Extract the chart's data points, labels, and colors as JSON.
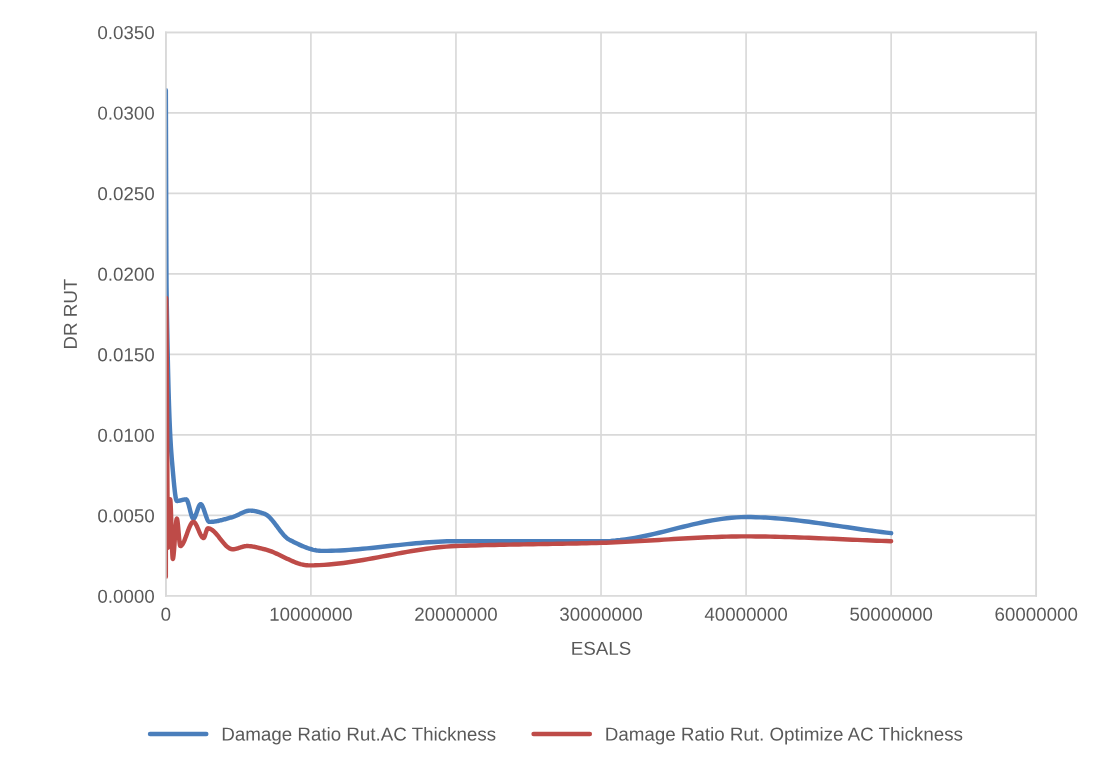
{
  "chart_data": {
    "type": "line",
    "xlabel": "ESALS",
    "ylabel": "DR RUT",
    "series": [
      {
        "name": "Damage Ratio Rut.AC Thickness",
        "color": "#4a7ebb",
        "x": [
          0,
          50000,
          480000,
          760000,
          1400000,
          1900000,
          2400000,
          3000000,
          4600000,
          5800000,
          6800000,
          8500000,
          10800000,
          20000000,
          30000000,
          40000000,
          50000000
        ],
        "values": [
          0.0314,
          0.019,
          0.0078,
          0.0059,
          0.006,
          0.0048,
          0.0057,
          0.0046,
          0.0049,
          0.0053,
          0.0051,
          0.0035,
          0.0028,
          0.0034,
          0.0034,
          0.0049,
          0.0039
        ]
      },
      {
        "name": "Damage Ratio Rut. Optimize AC Thickness",
        "color": "#be4b48",
        "x": [
          0,
          20000,
          150000,
          300000,
          480000,
          760000,
          1000000,
          1900000,
          2600000,
          2900000,
          4600000,
          5600000,
          6800000,
          9900000,
          20000000,
          30000000,
          40000000,
          50000000
        ],
        "values": [
          0.0012,
          0.0185,
          0.003,
          0.006,
          0.0023,
          0.0048,
          0.0031,
          0.0046,
          0.0036,
          0.0042,
          0.0029,
          0.0031,
          0.0029,
          0.0019,
          0.0031,
          0.0033,
          0.0037,
          0.0034
        ]
      }
    ],
    "xlim": [
      0,
      60000000
    ],
    "xticks": [
      0,
      10000000,
      20000000,
      30000000,
      40000000,
      50000000,
      60000000
    ],
    "ylim": [
      0,
      0.035
    ],
    "yticks": [
      {
        "value": 0,
        "label": "0.0000"
      },
      {
        "value": 0.005,
        "label": "0.0050"
      },
      {
        "value": 0.01,
        "label": "0.0100"
      },
      {
        "value": 0.015,
        "label": "0.0150"
      },
      {
        "value": 0.02,
        "label": "0.0200"
      },
      {
        "value": 0.025,
        "label": "0.0250"
      },
      {
        "value": 0.03,
        "label": "0.0300"
      },
      {
        "value": 0.035,
        "label": "0.0350"
      }
    ],
    "grid": true,
    "legend": "bottom",
    "marker": "none",
    "line_style": "solid"
  }
}
